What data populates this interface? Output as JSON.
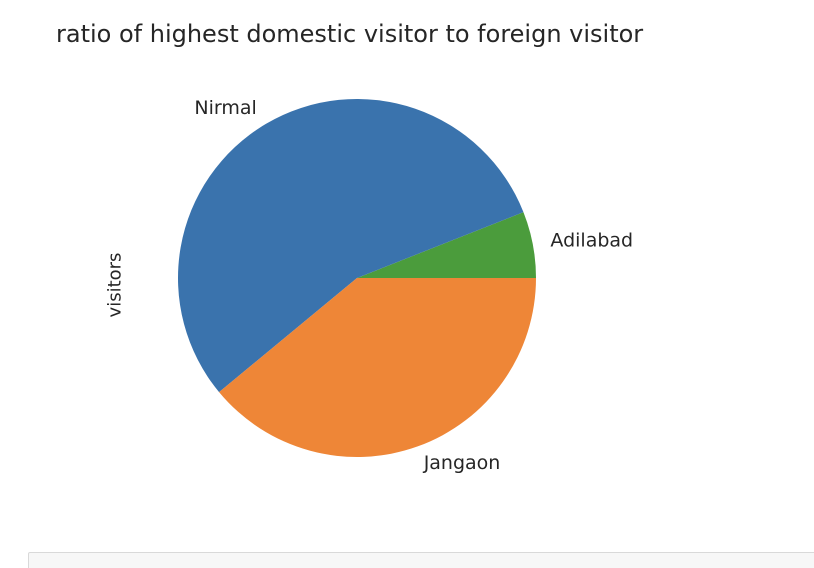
{
  "chart_data": {
    "type": "pie",
    "title": "ratio of highest domestic visitor to foreign visitor",
    "ylabel": "visitors",
    "slices": [
      {
        "label": "Adilabad",
        "value": 6,
        "color": "#4b9c3c"
      },
      {
        "label": "Nirmal",
        "value": 55,
        "color": "#3a73ad"
      },
      {
        "label": "Jangaon",
        "value": 39,
        "color": "#ee8637"
      }
    ],
    "startangle_deg": 0,
    "direction": "counterclockwise"
  }
}
